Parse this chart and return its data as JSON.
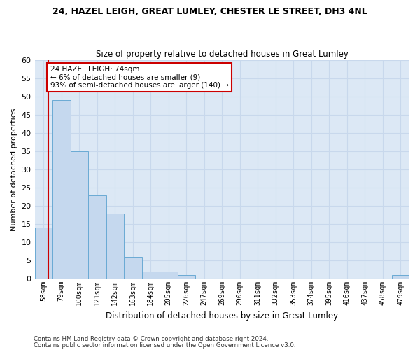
{
  "title1": "24, HAZEL LEIGH, GREAT LUMLEY, CHESTER LE STREET, DH3 4NL",
  "title2": "Size of property relative to detached houses in Great Lumley",
  "xlabel": "Distribution of detached houses by size in Great Lumley",
  "ylabel": "Number of detached properties",
  "categories": [
    "58sqm",
    "79sqm",
    "100sqm",
    "121sqm",
    "142sqm",
    "163sqm",
    "184sqm",
    "205sqm",
    "226sqm",
    "247sqm",
    "269sqm",
    "290sqm",
    "311sqm",
    "332sqm",
    "353sqm",
    "374sqm",
    "395sqm",
    "416sqm",
    "437sqm",
    "458sqm",
    "479sqm"
  ],
  "values": [
    14,
    49,
    35,
    23,
    18,
    6,
    2,
    2,
    1,
    0,
    0,
    0,
    0,
    0,
    0,
    0,
    0,
    0,
    0,
    0,
    1
  ],
  "bar_color": "#c5d8ee",
  "bar_edge_color": "#6aaad4",
  "annotation_text": "24 HAZEL LEIGH: 74sqm\n← 6% of detached houses are smaller (9)\n93% of semi-detached houses are larger (140) →",
  "annotation_box_color": "#ffffff",
  "annotation_box_edge": "#cc0000",
  "ylim": [
    0,
    60
  ],
  "yticks": [
    0,
    5,
    10,
    15,
    20,
    25,
    30,
    35,
    40,
    45,
    50,
    55,
    60
  ],
  "footer1": "Contains HM Land Registry data © Crown copyright and database right 2024.",
  "footer2": "Contains public sector information licensed under the Open Government Licence v3.0.",
  "grid_color": "#c8d8ec",
  "bg_color": "#dce8f5"
}
